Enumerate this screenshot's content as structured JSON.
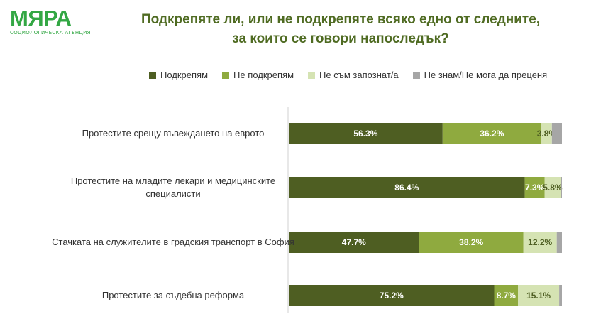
{
  "logo": {
    "word": "МЯРА",
    "tagline": "СОЦИОЛОГИЧЕСКА АГЕНЦИЯ"
  },
  "title": {
    "line1": "Подкрепяте ли, или не подкрепяте всяко едно от следните,",
    "line2": "за които се говори напоследък?"
  },
  "colors": {
    "title": "#4f6b22",
    "logo": "#33a744",
    "series": [
      "#4e5e22",
      "#8faa3f",
      "#d5e3b3",
      "#a6a6a6"
    ]
  },
  "chart_data": {
    "type": "bar",
    "orientation": "horizontal",
    "stacked": true,
    "legend_position": "top",
    "categories": [
      "Протестите срещу въвеждането на еврото",
      "Протестите на младите лекари и медицинските специалисти",
      "Стачката на служителите в градския транспорт в София",
      "Протестите за съдебна реформа"
    ],
    "category_lines": [
      [
        "Протестите срещу въвеждането на еврото"
      ],
      [
        "Протестите на младите лекари и медицинските",
        "специалисти"
      ],
      [
        "Стачката на служителите в градския транспорт в София"
      ],
      [
        "Протестите за съдебна реформа"
      ]
    ],
    "series": [
      {
        "name": "Подкрепям",
        "values": [
          56.3,
          86.4,
          47.7,
          75.2
        ]
      },
      {
        "name": "Не подкрепям",
        "values": [
          36.2,
          7.3,
          38.2,
          8.7
        ]
      },
      {
        "name": "Не съм запознат/а",
        "values": [
          3.8,
          5.8,
          12.2,
          15.1
        ]
      },
      {
        "name": "Не знам/Не мога да преценя",
        "values": [
          3.7,
          0.5,
          1.9,
          1.0
        ]
      }
    ],
    "labels": [
      [
        "56.3%",
        "86.4%",
        "47.7%",
        "75.2%"
      ],
      [
        "36.2%",
        "7.3%",
        "38.2%",
        "8.7%"
      ],
      [
        "3.8%",
        "5.8%",
        "12.2%",
        "15.1%"
      ],
      [
        "",
        "",
        "",
        ""
      ]
    ],
    "xlim": [
      0,
      100
    ],
    "grid": false
  }
}
